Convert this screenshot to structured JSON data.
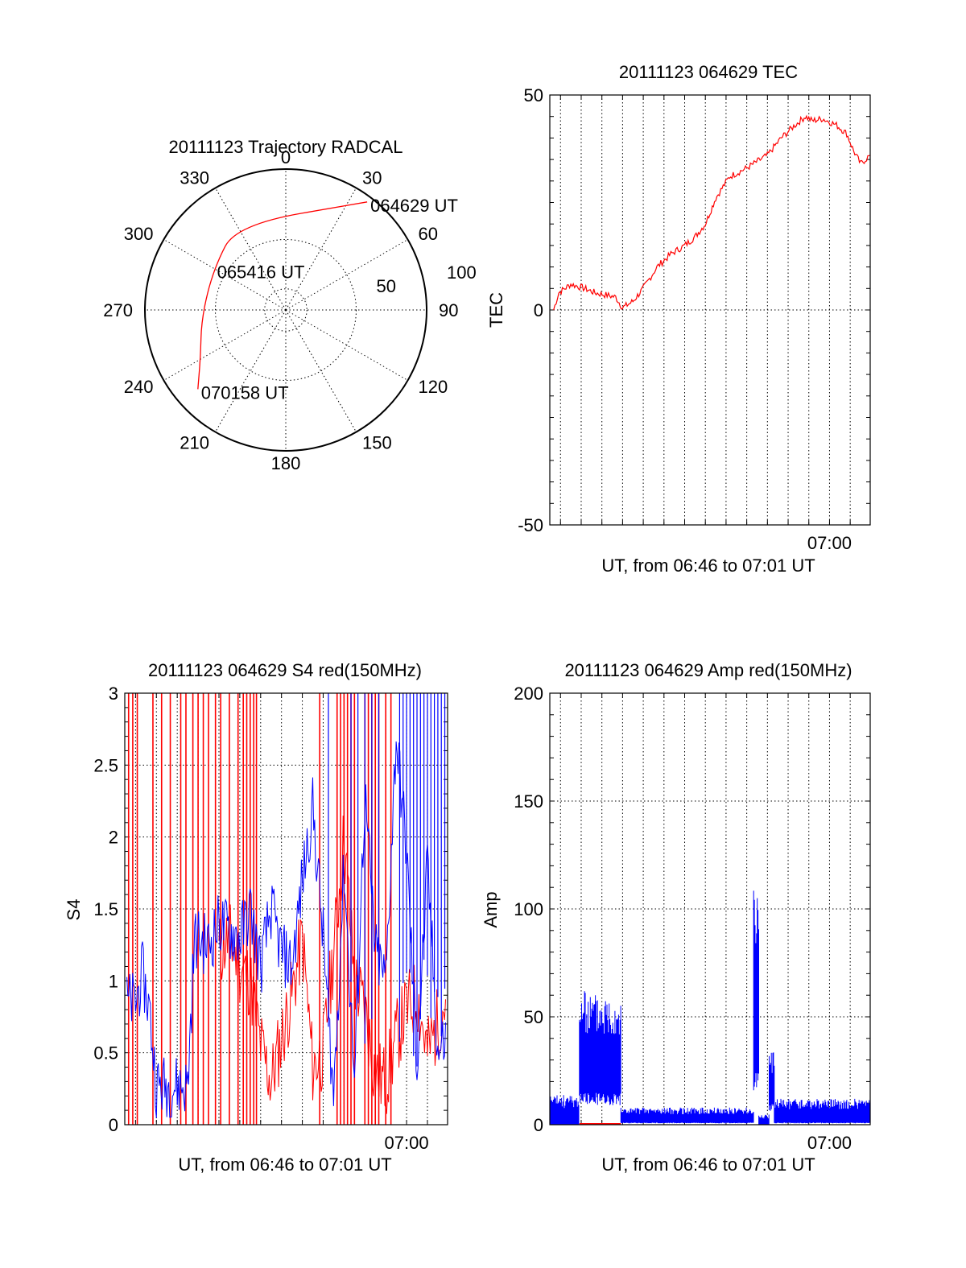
{
  "colors": {
    "red": "#ff0000",
    "blue": "#0000ff",
    "black": "#000000",
    "background": "#ffffff"
  },
  "chart_data": [
    {
      "type": "polar",
      "panel": "trajectory",
      "title": "20111123 Trajectory RADCAL",
      "angle_labels": [
        "0",
        "30",
        "60",
        "90",
        "120",
        "150",
        "180",
        "210",
        "240",
        "270",
        "300",
        "330"
      ],
      "radius_labels": [
        "50",
        "100"
      ],
      "radius_range": [
        0,
        100
      ],
      "grid": true,
      "series": [
        {
          "color": "red",
          "points": [
            {
              "azimuth": 37,
              "radius": 96
            },
            {
              "azimuth": 330,
              "radius": 70
            },
            {
              "azimuth": 300,
              "radius": 59
            },
            {
              "azimuth": 265,
              "radius": 60
            },
            {
              "azimuth": 240,
              "radius": 70
            },
            {
              "azimuth": 228,
              "radius": 84
            }
          ]
        }
      ],
      "annotations": [
        {
          "text": "064629 UT",
          "azimuth": 37,
          "radius": 96
        },
        {
          "text": "065416 UT",
          "azimuth": 300,
          "radius": 59
        },
        {
          "text": "070158 UT",
          "azimuth": 228,
          "radius": 84
        }
      ]
    },
    {
      "type": "line",
      "panel": "tec",
      "title": "20111123 064629 TEC",
      "ylabel": "TEC",
      "xlabel": "UT, from 06:46 to 07:01 UT",
      "ylim": [
        -50,
        50
      ],
      "yticks": [
        "-50",
        "0",
        "50"
      ],
      "xlim": [
        "06:46:29",
        "07:01:58"
      ],
      "xtick_label": {
        "time": "07:00",
        "text": "07:00"
      },
      "grid": true,
      "series": [
        {
          "color": "red",
          "points": [
            [
              "06:46:40",
              0
            ],
            [
              "06:46:55",
              4
            ],
            [
              "06:47:30",
              6
            ],
            [
              "06:48:10",
              5
            ],
            [
              "06:48:40",
              4
            ],
            [
              "06:49:40",
              3
            ],
            [
              "06:50:00",
              0.5
            ],
            [
              "06:50:30",
              2
            ],
            [
              "06:51:00",
              5
            ],
            [
              "06:51:40",
              10
            ],
            [
              "06:52:20",
              13
            ],
            [
              "06:53:00",
              15
            ],
            [
              "06:53:30",
              17
            ],
            [
              "06:54:00",
              20
            ],
            [
              "06:54:30",
              26
            ],
            [
              "06:55:10",
              31
            ],
            [
              "06:56:00",
              33
            ],
            [
              "06:57:00",
              36
            ],
            [
              "06:57:40",
              40
            ],
            [
              "06:58:20",
              43
            ],
            [
              "06:58:50",
              45
            ],
            [
              "06:59:10",
              44
            ],
            [
              "06:59:40",
              44.5
            ],
            [
              "07:00:20",
              43
            ],
            [
              "07:00:50",
              41
            ],
            [
              "07:01:10",
              37
            ],
            [
              "07:01:30",
              34
            ],
            [
              "07:01:58",
              36
            ]
          ]
        }
      ]
    },
    {
      "type": "line",
      "panel": "s4",
      "title": "20111123 064629 S4 red(150MHz)",
      "ylabel": "S4",
      "xlabel": "UT, from 06:46 to 07:01 UT",
      "ylim": [
        0,
        3
      ],
      "yticks": [
        "0",
        "0.5",
        "1",
        "1.5",
        "2",
        "2.5",
        "3"
      ],
      "xlim": [
        "06:46:29",
        "07:01:58"
      ],
      "xtick_label": {
        "time": "07:00",
        "text": "07:00"
      },
      "grid": true,
      "series": [
        {
          "color": "blue",
          "points": [
            [
              "06:46:35",
              0.85
            ],
            [
              "06:47:00",
              0.85
            ],
            [
              "06:47:20",
              1.05
            ],
            [
              "06:47:40",
              0.8
            ],
            [
              "06:48:00",
              0.27
            ],
            [
              "06:49:00",
              0.27
            ],
            [
              "06:49:30",
              0.27
            ],
            [
              "06:49:50",
              1.3
            ],
            [
              "06:50:30",
              1.25
            ],
            [
              "06:51:00",
              1.4
            ],
            [
              "06:51:30",
              1.35
            ],
            [
              "06:52:00",
              1.3
            ],
            [
              "06:52:30",
              1.5
            ],
            [
              "06:53:00",
              1.1
            ],
            [
              "06:53:30",
              1.5
            ],
            [
              "06:54:00",
              1.2
            ],
            [
              "06:54:30",
              1.1
            ],
            [
              "06:55:00",
              1.7
            ],
            [
              "06:55:30",
              2.2
            ],
            [
              "06:56:00",
              1.3
            ],
            [
              "06:56:30",
              0.2
            ],
            [
              "06:57:00",
              1.8
            ],
            [
              "06:57:30",
              0.3
            ],
            [
              "06:58:00",
              2.3
            ],
            [
              "06:58:30",
              1.2
            ],
            [
              "06:59:00",
              1.0
            ],
            [
              "06:59:30",
              2.7
            ],
            [
              "07:00:00",
              1.9
            ],
            [
              "07:00:30",
              0.4
            ],
            [
              "07:01:00",
              1.8
            ],
            [
              "07:01:30",
              0.5
            ],
            [
              "07:01:55",
              0.6
            ]
          ]
        },
        {
          "color": "red",
          "points": [
            [
              "06:51:00",
              1.2
            ],
            [
              "06:51:30",
              1.3
            ],
            [
              "06:52:00",
              1.1
            ],
            [
              "06:52:30",
              1.0
            ],
            [
              "06:53:00",
              0.55
            ],
            [
              "06:53:30",
              0.3
            ],
            [
              "06:54:00",
              0.6
            ],
            [
              "06:54:30",
              0.9
            ],
            [
              "06:55:00",
              1.3
            ],
            [
              "06:55:30",
              0.4
            ],
            [
              "06:56:00",
              0.5
            ],
            [
              "06:56:30",
              1.2
            ],
            [
              "06:57:00",
              2.0
            ],
            [
              "06:57:30",
              1.0
            ],
            [
              "06:58:00",
              0.8
            ],
            [
              "06:58:30",
              0.35
            ],
            [
              "06:59:00",
              0.3
            ],
            [
              "06:59:30",
              0.6
            ],
            [
              "07:00:00",
              0.8
            ],
            [
              "07:00:30",
              0.9
            ],
            [
              "07:01:00",
              0.5
            ],
            [
              "07:01:30",
              0.7
            ],
            [
              "07:01:55",
              0.9
            ]
          ]
        }
      ],
      "red_spikes_to_top": [
        "06:46:40",
        "06:46:52",
        "06:47:05",
        "06:47:50",
        "06:48:15",
        "06:48:40",
        "06:49:10",
        "06:49:25",
        "06:49:45",
        "06:50:00",
        "06:50:15",
        "06:50:30",
        "06:50:50",
        "06:51:05",
        "06:51:30",
        "06:51:55",
        "06:52:10",
        "06:52:20",
        "06:52:30",
        "06:52:40",
        "06:52:48",
        "06:55:50",
        "06:56:40",
        "06:56:50",
        "06:57:00",
        "06:57:10",
        "06:57:20",
        "06:57:30",
        "06:58:00",
        "06:58:10",
        "06:58:20",
        "06:58:30",
        "06:58:40",
        "06:59:00",
        "06:59:15"
      ],
      "blue_spikes_to_top": [
        "06:56:15",
        "06:57:20",
        "06:57:40",
        "06:58:00",
        "06:58:20",
        "06:58:40",
        "06:59:40",
        "06:59:50",
        "07:00:00",
        "07:00:10",
        "07:00:20",
        "07:00:30",
        "07:00:40",
        "07:00:50",
        "07:01:00",
        "07:01:10",
        "07:01:20",
        "07:01:30",
        "07:01:40",
        "07:01:50"
      ]
    },
    {
      "type": "line",
      "panel": "amp",
      "title": "20111123 064629 Amp red(150MHz)",
      "ylabel": "Amp",
      "xlabel": "UT, from 06:46 to 07:01 UT",
      "ylim": [
        0,
        200
      ],
      "yticks": [
        "0",
        "50",
        "100",
        "150",
        "200"
      ],
      "xlim": [
        "06:46:29",
        "07:01:58"
      ],
      "xtick_label": {
        "time": "07:00",
        "text": "07:00"
      },
      "grid": true,
      "series": [
        {
          "color": "blue",
          "segments": [
            {
              "from": "06:46:29",
              "to": "06:47:55",
              "low": 0,
              "high": 14
            },
            {
              "from": "06:47:55",
              "to": "06:49:55",
              "low": 15,
              "high": 62
            },
            {
              "from": "06:49:55",
              "to": "06:56:20",
              "low": 1,
              "high": 8
            },
            {
              "from": "06:56:20",
              "to": "06:56:35",
              "low": 25,
              "high": 114
            },
            {
              "from": "06:56:35",
              "to": "06:57:05",
              "low": 0,
              "high": 5
            },
            {
              "from": "06:57:05",
              "to": "06:57:20",
              "low": 10,
              "high": 34
            },
            {
              "from": "06:57:20",
              "to": "07:01:58",
              "low": 1,
              "high": 12
            }
          ]
        },
        {
          "color": "red",
          "level": 0,
          "from": "06:47:55",
          "to": "06:49:55"
        }
      ]
    }
  ]
}
